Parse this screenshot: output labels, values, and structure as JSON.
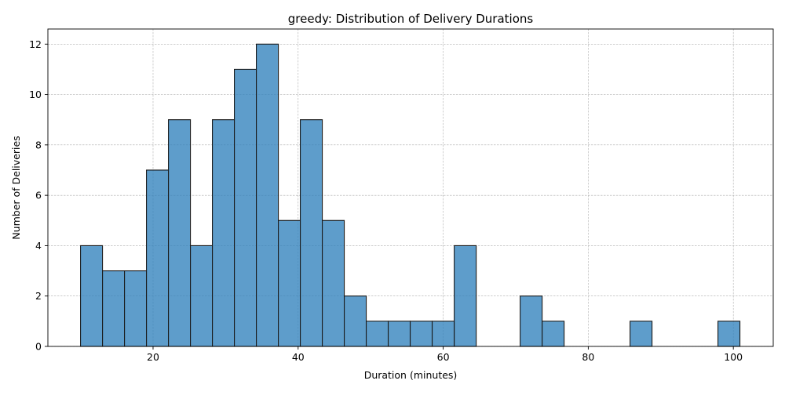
{
  "chart_data": {
    "type": "bar",
    "subtype": "histogram",
    "title": "greedy: Distribution of Delivery Durations",
    "xlabel": "Duration (minutes)",
    "ylabel": "Number of Deliveries",
    "xlim": [
      5.5,
      105.5
    ],
    "ylim": [
      0,
      12.6
    ],
    "xticks": [
      20,
      40,
      60,
      80,
      100
    ],
    "yticks": [
      0,
      2,
      4,
      6,
      8,
      10,
      12
    ],
    "grid": true,
    "bin_edges": [
      10,
      13.03,
      16.06,
      19.09,
      22.12,
      25.15,
      28.18,
      31.21,
      34.24,
      37.27,
      40.3,
      43.33,
      46.36,
      49.39,
      52.42,
      55.45,
      58.48,
      61.52,
      64.55,
      67.58,
      70.61,
      73.64,
      76.67,
      79.7,
      82.73,
      85.76,
      88.79,
      91.82,
      94.85,
      97.88,
      100.91
    ],
    "counts": [
      4,
      3,
      3,
      7,
      9,
      4,
      9,
      11,
      12,
      5,
      9,
      5,
      2,
      1,
      1,
      1,
      1,
      4,
      0,
      0,
      2,
      1,
      0,
      0,
      0,
      1,
      0,
      0,
      0,
      1
    ],
    "colors": {
      "bar_fill": "#3182bd",
      "bar_opacity": 0.78,
      "bar_edge": "#1a1a1a"
    }
  }
}
